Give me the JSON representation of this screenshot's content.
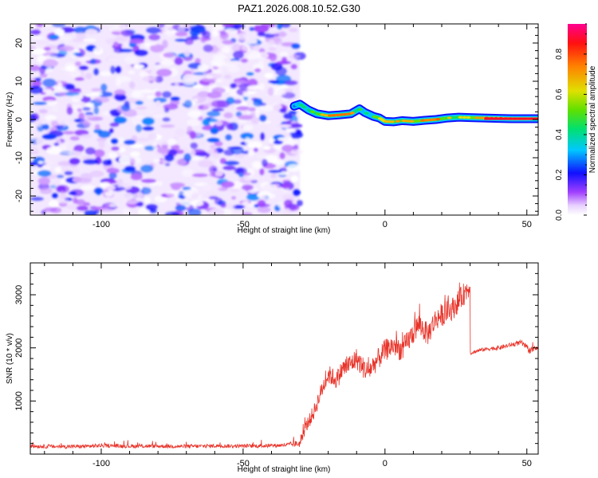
{
  "title": "PAZ1.2026.008.10.52.G30",
  "chart_data": [
    {
      "type": "heatmap",
      "name": "spectrogram",
      "xlabel": "Height of straight line (km)",
      "ylabel": "Frequency (Hz)",
      "xlim": [
        -125,
        54
      ],
      "ylim": [
        -25,
        25
      ],
      "x_ticks": [
        -100,
        -50,
        0,
        50
      ],
      "x_tick_labels": [
        "-100",
        "-50",
        "0",
        "50"
      ],
      "y_ticks": [
        -20,
        -10,
        0,
        10,
        20
      ],
      "y_tick_labels": [
        "-20",
        "-10",
        "0",
        "10",
        "20"
      ],
      "noise_region": {
        "x_from": -125,
        "x_to": -30,
        "amplitude_max": 0.3
      },
      "signal_track": {
        "x": [
          -32,
          -30,
          -27,
          -24,
          -20,
          -16,
          -12,
          -9,
          -7,
          -4,
          -2,
          0,
          3,
          6,
          10,
          14,
          18,
          22,
          26,
          30,
          35,
          40,
          45,
          50,
          54
        ],
        "freq": [
          3.5,
          4.0,
          2.5,
          1.5,
          1.0,
          1.2,
          1.5,
          2.8,
          1.8,
          0.8,
          0.4,
          -0.5,
          -0.6,
          -0.3,
          -0.5,
          -0.2,
          0.0,
          0.4,
          0.6,
          0.5,
          0.4,
          0.3,
          0.2,
          0.2,
          0.2
        ],
        "amplitude": [
          0.35,
          0.45,
          0.55,
          0.7,
          0.8,
          0.8,
          0.75,
          0.5,
          0.45,
          0.55,
          0.65,
          0.7,
          0.75,
          0.72,
          0.8,
          0.78,
          0.82,
          0.7,
          0.65,
          0.75,
          0.85,
          0.9,
          0.92,
          0.95,
          0.95
        ]
      },
      "colorbar": {
        "label": "Normalized spectral amplitude",
        "range": [
          0,
          0.95
        ],
        "ticks": [
          0.0,
          0.2,
          0.4,
          0.6,
          0.8
        ],
        "tick_labels": [
          "0.0",
          "0.2",
          "0.4",
          "0.6",
          "0.8"
        ]
      }
    },
    {
      "type": "line",
      "name": "snr",
      "xlabel": "Height of straight line (km)",
      "ylabel": "SNR (10 * v/v)",
      "xlim": [
        -125,
        54
      ],
      "ylim": [
        0,
        3600
      ],
      "x_ticks": [
        -100,
        -50,
        0,
        50
      ],
      "x_tick_labels": [
        "-100",
        "-50",
        "0",
        "50"
      ],
      "y_ticks": [
        1000,
        2000,
        3000
      ],
      "y_tick_labels": [
        "1000",
        "2000",
        "3000"
      ],
      "color": "#e8342a",
      "series": [
        {
          "name": "SNR",
          "x": [
            -125,
            -115,
            -105,
            -100,
            -90,
            -80,
            -70,
            -60,
            -50,
            -40,
            -35,
            -30,
            -28,
            -25,
            -22,
            -20,
            -17,
            -15,
            -12,
            -10,
            -8,
            -6,
            -3,
            0,
            3,
            6,
            9,
            12,
            15,
            18,
            21,
            24,
            27,
            29.5,
            30,
            33,
            36,
            40,
            44,
            48,
            51,
            54
          ],
          "base": [
            150,
            140,
            145,
            160,
            150,
            150,
            145,
            155,
            150,
            160,
            170,
            200,
            500,
            800,
            1250,
            1500,
            1400,
            1600,
            1700,
            1800,
            1650,
            1550,
            1750,
            1950,
            2050,
            1950,
            2200,
            2450,
            2250,
            2550,
            2650,
            2750,
            2950,
            3150,
            1900,
            1950,
            1980,
            2000,
            2050,
            2100,
            1950,
            2000
          ],
          "noise": [
            60,
            60,
            60,
            60,
            60,
            60,
            60,
            60,
            60,
            60,
            60,
            120,
            200,
            250,
            280,
            300,
            300,
            320,
            330,
            340,
            340,
            340,
            340,
            350,
            350,
            350,
            360,
            360,
            360,
            360,
            360,
            360,
            360,
            360,
            60,
            60,
            60,
            70,
            70,
            80,
            100,
            60
          ]
        }
      ]
    }
  ]
}
